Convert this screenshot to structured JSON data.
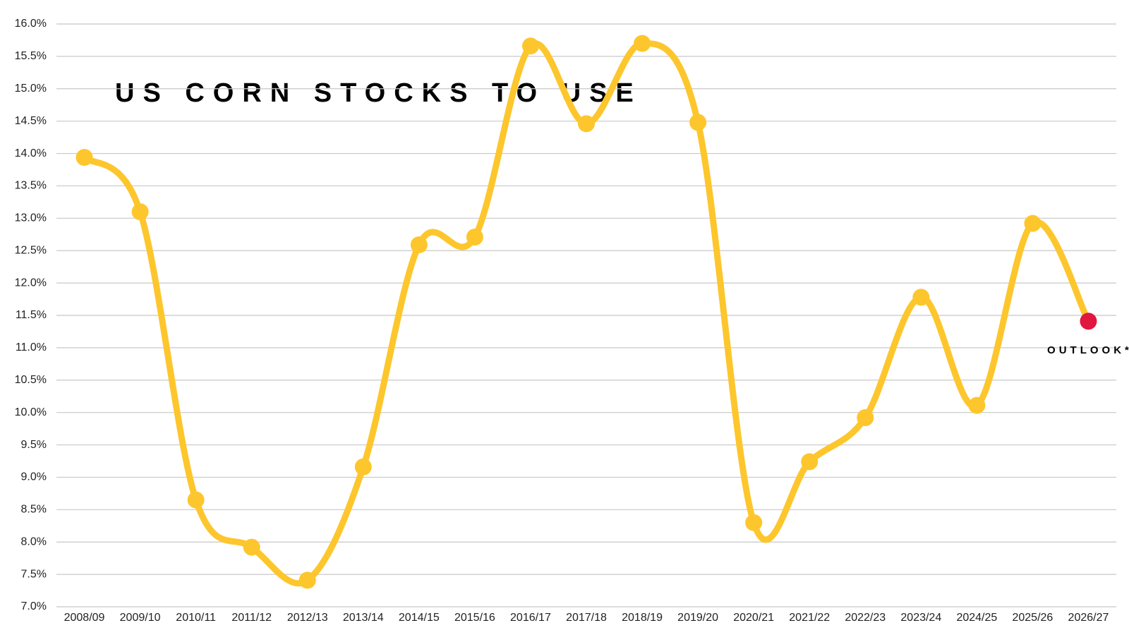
{
  "chart_data": {
    "type": "line",
    "title": "US CORN STOCKS TO USE",
    "categories": [
      "2008/09",
      "2009/10",
      "2010/11",
      "2011/12",
      "2012/13",
      "2013/14",
      "2014/15",
      "2015/16",
      "2016/17",
      "2017/18",
      "2018/19",
      "2019/20",
      "2020/21",
      "2021/22",
      "2022/23",
      "2023/24",
      "2024/25",
      "2025/26",
      "2026/27"
    ],
    "values": [
      13.94,
      13.1,
      8.65,
      7.92,
      7.41,
      9.16,
      12.59,
      12.71,
      15.66,
      14.46,
      15.7,
      14.48,
      8.3,
      9.24,
      9.92,
      11.78,
      10.11,
      12.92,
      11.41
    ],
    "color": "#fdc62c",
    "highlight_color": "#e0173f",
    "annotation": "OUTLOOK*",
    "ylim": [
      7,
      16
    ],
    "yticks": [
      {
        "value": 7,
        "label": "7.0%"
      },
      {
        "value": 7.5,
        "label": "7.5%"
      },
      {
        "value": 8,
        "label": "8.0%"
      },
      {
        "value": 8.5,
        "label": "8.5%"
      },
      {
        "value": 9,
        "label": "9.0%"
      },
      {
        "value": 9.5,
        "label": "9.5%"
      },
      {
        "value": 10,
        "label": "10.0%"
      },
      {
        "value": 10.5,
        "label": "10.5%"
      },
      {
        "value": 11,
        "label": "11.0%"
      },
      {
        "value": 11.5,
        "label": "11.5%"
      },
      {
        "value": 12,
        "label": "12.0%"
      },
      {
        "value": 12.5,
        "label": "12.5%"
      },
      {
        "value": 13,
        "label": "13.0%"
      },
      {
        "value": 13.5,
        "label": "13.5%"
      },
      {
        "value": 14,
        "label": "14.0%"
      },
      {
        "value": 14.5,
        "label": "14.5%"
      },
      {
        "value": 15,
        "label": "15.0%"
      },
      {
        "value": 15.5,
        "label": "15.5%"
      },
      {
        "value": 16,
        "label": "16.0%"
      }
    ],
    "grid": true
  }
}
